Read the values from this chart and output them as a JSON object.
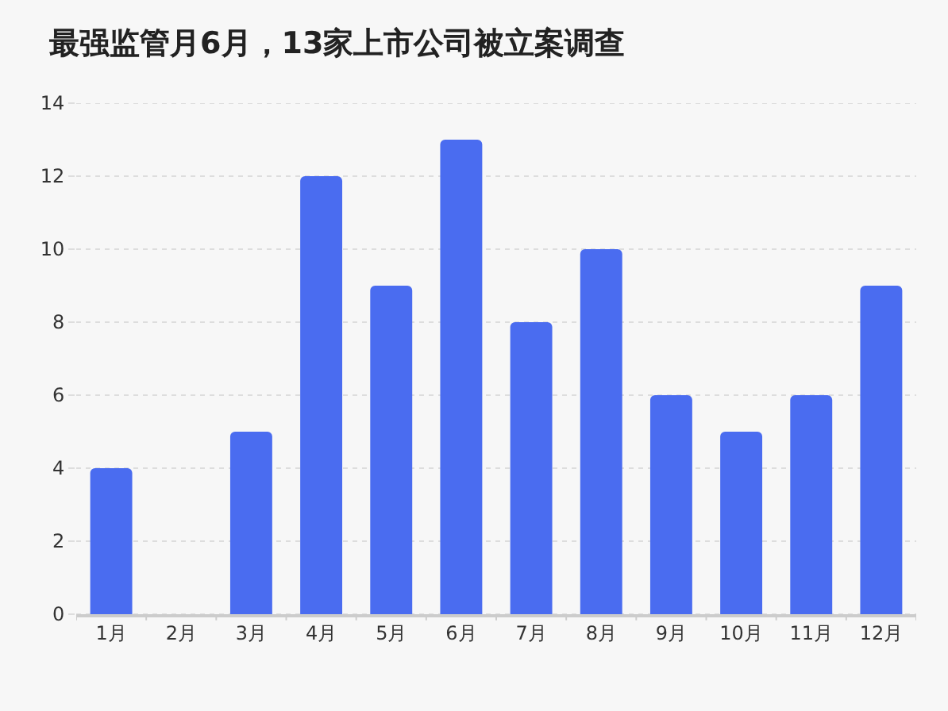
{
  "chart_data": {
    "type": "bar",
    "title": "最强监管月6月，13家上市公司被立案调查",
    "categories": [
      "1月",
      "2月",
      "3月",
      "4月",
      "5月",
      "6月",
      "7月",
      "8月",
      "9月",
      "10月",
      "11月",
      "12月"
    ],
    "values": [
      4,
      0,
      5,
      12,
      9,
      13,
      8,
      10,
      6,
      5,
      6,
      9
    ],
    "color": "#4a6cf0",
    "ylim": [
      0,
      14
    ],
    "yticks": [
      0,
      2,
      4,
      6,
      8,
      10,
      12,
      14
    ],
    "grid": "y"
  }
}
